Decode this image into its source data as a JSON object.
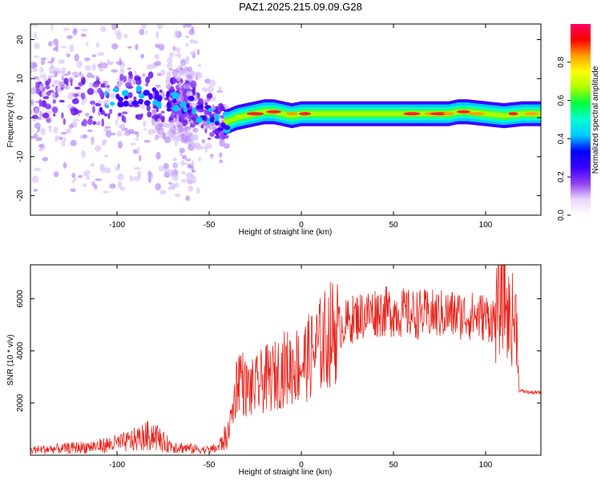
{
  "title": "PAZ1.2025.215.09.09.G28",
  "chart_data": [
    {
      "type": "heatmap",
      "title": "PAZ1.2025.215.09.09.G28",
      "xlabel": "Height of straight line (km)",
      "ylabel": "Frequency (Hz)",
      "xlim": [
        -147,
        130
      ],
      "ylim": [
        -25,
        24
      ],
      "xticks": [
        -100,
        -50,
        0,
        50,
        100
      ],
      "yticks": [
        -20,
        -10,
        0,
        10,
        20
      ],
      "colorbar": {
        "label": "Normalized spectral amplitude",
        "range": [
          0.0,
          1.0
        ],
        "ticks": [
          "0.0",
          "0.2",
          "0.4",
          "0.6",
          "0.8"
        ],
        "colors": [
          "#ffffff",
          "#e9d6fb",
          "#8f3ff0",
          "#3a00ff",
          "#0000ff",
          "#00c8ff",
          "#00ffd0",
          "#00ff40",
          "#aaff00",
          "#ffff00",
          "#ffa000",
          "#ff0000",
          "#ff0060"
        ]
      },
      "ridge": {
        "x": [
          -147,
          -120,
          -100,
          -90,
          -80,
          -70,
          -60,
          -55,
          -50,
          -45,
          -40,
          -35,
          -30,
          -25,
          -20,
          -15,
          -10,
          -5,
          0,
          10,
          20,
          40,
          60,
          80,
          85,
          90,
          100,
          110,
          120,
          130
        ],
        "y": [
          4.0,
          3.8,
          5.0,
          6.0,
          5.0,
          4.0,
          3.0,
          1.5,
          0.0,
          -1.5,
          -1.0,
          0.0,
          0.5,
          1.0,
          1.5,
          1.5,
          1.0,
          0.5,
          1.0,
          1.0,
          1.0,
          1.0,
          1.0,
          1.0,
          1.5,
          1.5,
          1.0,
          0.5,
          1.0,
          1.0
        ]
      },
      "scatter_band": {
        "x_range": [
          -147,
          -40
        ],
        "y_range": [
          -25,
          24
        ]
      }
    },
    {
      "type": "line",
      "xlabel": "Height of straight line (km)",
      "ylabel": "SNR (10 * v/v)",
      "xlim": [
        -147,
        130
      ],
      "ylim": [
        0,
        7300
      ],
      "xticks": [
        -100,
        -50,
        0,
        50,
        100
      ],
      "yticks": [
        2000,
        4000,
        6000
      ],
      "series": [
        {
          "color": "#e8241c",
          "x": [
            -147,
            -130,
            -110,
            -95,
            -85,
            -80,
            -75,
            -70,
            -60,
            -50,
            -45,
            -40,
            -37,
            -35,
            -33,
            -31,
            -28,
            -25,
            -20,
            -15,
            -10,
            -5,
            0,
            5,
            10,
            15,
            20,
            30,
            40,
            50,
            60,
            70,
            80,
            90,
            100,
            105,
            108,
            110,
            112,
            115,
            117,
            118,
            120,
            125,
            130
          ],
          "y": [
            200,
            250,
            350,
            500,
            700,
            800,
            500,
            350,
            250,
            200,
            300,
            800,
            1800,
            2800,
            3200,
            2600,
            2500,
            2600,
            2900,
            3000,
            3300,
            3400,
            3500,
            3800,
            4200,
            4600,
            4900,
            5300,
            5500,
            5500,
            5400,
            5400,
            5400,
            5350,
            5300,
            5200,
            5800,
            6400,
            5300,
            5200,
            5100,
            2500,
            2450,
            2400,
            2400
          ]
        }
      ]
    }
  ]
}
